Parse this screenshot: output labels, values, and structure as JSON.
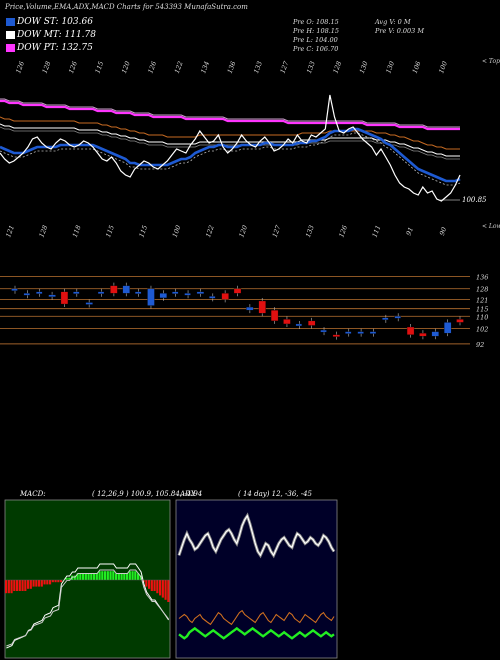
{
  "header": "Price,Volume,EMA,ADX,MACD Charts for 543393 MunafaSutra.com",
  "legend": [
    {
      "label": "DOW ST: 103.66",
      "color": "#1e5ad2"
    },
    {
      "label": "DOW MT: 111.78",
      "color": "#ffffff"
    },
    {
      "label": "DOW PT: 132.75",
      "color": "#ff35ff"
    }
  ],
  "ohlc": {
    "open": "Pre   O: 108.15",
    "high": "Pre   H: 108.15",
    "low": "Pre   L: 104.00",
    "close": "Pre   C: 106.70",
    "avgvol": "Avg V: 0   M",
    "vol": "Pre   V: 0.003 M"
  },
  "price_panel": {
    "top_labels": [
      "126",
      "128",
      "126",
      "115",
      "120",
      "126",
      "122",
      "134",
      "136",
      "133",
      "127",
      "133",
      "128",
      "130",
      "130",
      "106",
      "100"
    ],
    "bottom_labels": [
      "121",
      "128",
      "118",
      "115",
      "115",
      "100",
      "122",
      "120",
      "127",
      "133",
      "126",
      "111",
      "91",
      "90"
    ],
    "side_top": "< Tops",
    "side_bottom": "< Lows",
    "last_price": "100.85"
  },
  "levels": [
    "136",
    "128",
    "121",
    "115",
    "110",
    "102",
    "92"
  ],
  "chart_data": [
    {
      "type": "line",
      "name": "price",
      "x": [
        0,
        1,
        2,
        3,
        4,
        5,
        6,
        7,
        8,
        9,
        10,
        11,
        12,
        13,
        14,
        15,
        16,
        17,
        18,
        19,
        20,
        21,
        22,
        23,
        24,
        25,
        26,
        27,
        28,
        29,
        30,
        31,
        32,
        33,
        34,
        35,
        36,
        37,
        38,
        39,
        40,
        41,
        42,
        43,
        44,
        45,
        46,
        47,
        48,
        49,
        50,
        51,
        52,
        53,
        54,
        55,
        56,
        57,
        58,
        59,
        60,
        61,
        62,
        63,
        64,
        65,
        66,
        67,
        68,
        69,
        70,
        71,
        72,
        73,
        74,
        75,
        76,
        77,
        78,
        79,
        80,
        81,
        82,
        83,
        84,
        85,
        86,
        87,
        88,
        89,
        90,
        91,
        92,
        93,
        94,
        95,
        96,
        97,
        98,
        99
      ],
      "series": [
        {
          "name": "close",
          "values": [
            121,
            118,
            116,
            117,
            119,
            121,
            124,
            128,
            129,
            126,
            124,
            123,
            126,
            128,
            127,
            125,
            124,
            125,
            127,
            126,
            124,
            121,
            118,
            117,
            119,
            116,
            112,
            110,
            109,
            113,
            115,
            117,
            116,
            114,
            113,
            115,
            117,
            120,
            123,
            122,
            121,
            125,
            128,
            132,
            129,
            126,
            127,
            130,
            124,
            121,
            123,
            126,
            130,
            127,
            125,
            124,
            127,
            129,
            126,
            122,
            123,
            125,
            128,
            126,
            130,
            127,
            126,
            130,
            129,
            131,
            133,
            150,
            139,
            132,
            131,
            133,
            134,
            131,
            128,
            126,
            124,
            120,
            123,
            119,
            115,
            110,
            106,
            104,
            103,
            101,
            100,
            104,
            101,
            102,
            98,
            97,
            99,
            101,
            105,
            110
          ]
        },
        {
          "name": "ema_short",
          "values": [
            124,
            123,
            122,
            121,
            121,
            121,
            122,
            123,
            124,
            124,
            124,
            124,
            124,
            125,
            125,
            125,
            125,
            125,
            125,
            125,
            125,
            124,
            123,
            122,
            121,
            120,
            119,
            118,
            116,
            116,
            115,
            115,
            115,
            115,
            115,
            115,
            115,
            116,
            117,
            118,
            118,
            119,
            121,
            122,
            123,
            124,
            124,
            125,
            125,
            124,
            124,
            124,
            125,
            125,
            125,
            125,
            125,
            126,
            126,
            125,
            125,
            125,
            125,
            125,
            126,
            126,
            126,
            127,
            127,
            128,
            129,
            131,
            132,
            132,
            132,
            132,
            133,
            133,
            132,
            131,
            130,
            129,
            128,
            126,
            125,
            123,
            121,
            119,
            117,
            115,
            113,
            112,
            111,
            110,
            109,
            108,
            107,
            107,
            107,
            108
          ]
        },
        {
          "name": "ema_mid",
          "values": [
            134,
            133,
            133,
            132,
            132,
            132,
            132,
            132,
            132,
            132,
            132,
            132,
            132,
            132,
            132,
            132,
            132,
            131,
            131,
            131,
            131,
            131,
            130,
            130,
            129,
            129,
            128,
            128,
            127,
            127,
            126,
            126,
            125,
            125,
            125,
            125,
            124,
            124,
            124,
            124,
            124,
            124,
            124,
            125,
            125,
            125,
            125,
            125,
            125,
            125,
            125,
            125,
            125,
            125,
            125,
            125,
            125,
            125,
            125,
            125,
            125,
            125,
            125,
            125,
            125,
            126,
            126,
            126,
            126,
            126,
            126,
            127,
            127,
            127,
            127,
            127,
            127,
            127,
            127,
            127,
            127,
            126,
            126,
            126,
            125,
            125,
            124,
            124,
            123,
            122,
            122,
            121,
            120,
            120,
            119,
            119,
            118,
            118,
            118,
            118
          ]
        },
        {
          "name": "ema_long",
          "values": [
            147,
            147,
            146,
            146,
            146,
            145,
            145,
            145,
            145,
            145,
            144,
            144,
            144,
            144,
            144,
            143,
            143,
            143,
            143,
            143,
            143,
            142,
            142,
            142,
            142,
            141,
            141,
            141,
            141,
            140,
            140,
            140,
            140,
            139,
            139,
            139,
            139,
            139,
            139,
            139,
            138,
            138,
            138,
            138,
            138,
            138,
            138,
            138,
            138,
            137,
            137,
            137,
            137,
            137,
            137,
            137,
            137,
            137,
            137,
            137,
            137,
            137,
            136,
            136,
            136,
            136,
            136,
            136,
            136,
            136,
            136,
            136,
            136,
            136,
            136,
            136,
            136,
            136,
            136,
            135,
            135,
            135,
            135,
            135,
            135,
            135,
            134,
            134,
            134,
            134,
            134,
            134,
            133,
            133,
            133,
            133,
            133,
            133,
            133,
            133
          ]
        }
      ],
      "ylim": [
        90,
        160
      ]
    },
    {
      "type": "bar",
      "name": "candles",
      "values": [
        {
          "o": 128,
          "c": 128
        },
        {
          "o": 125,
          "c": 125
        },
        {
          "o": 126,
          "c": 126
        },
        {
          "o": 123,
          "c": 124
        },
        {
          "o": 126,
          "c": 118
        },
        {
          "o": 126,
          "c": 126
        },
        {
          "o": 118,
          "c": 119
        },
        {
          "o": 126,
          "c": 126
        },
        {
          "o": 130,
          "c": 125
        },
        {
          "o": 125,
          "c": 130
        },
        {
          "o": 126,
          "c": 126
        },
        {
          "o": 117,
          "c": 128
        },
        {
          "o": 122,
          "c": 125
        },
        {
          "o": 126,
          "c": 126
        },
        {
          "o": 125,
          "c": 125
        },
        {
          "o": 125,
          "c": 126
        },
        {
          "o": 123,
          "c": 123
        },
        {
          "o": 125,
          "c": 121
        },
        {
          "o": 128,
          "c": 125
        },
        {
          "o": 114,
          "c": 116
        },
        {
          "o": 120,
          "c": 112
        },
        {
          "o": 114,
          "c": 107
        },
        {
          "o": 108,
          "c": 105
        },
        {
          "o": 105,
          "c": 105
        },
        {
          "o": 107,
          "c": 104
        },
        {
          "o": 101,
          "c": 101
        },
        {
          "o": 98,
          "c": 97
        },
        {
          "o": 100,
          "c": 100
        },
        {
          "o": 100,
          "c": 100
        },
        {
          "o": 100,
          "c": 100
        },
        {
          "o": 109,
          "c": 109
        },
        {
          "o": 110,
          "c": 110
        },
        {
          "o": 103,
          "c": 98
        },
        {
          "o": 99,
          "c": 97
        },
        {
          "o": 97,
          "c": 100
        },
        {
          "o": 99,
          "c": 106
        },
        {
          "o": 108,
          "c": 106
        }
      ],
      "ylim": [
        88,
        150
      ]
    },
    {
      "type": "bar",
      "name": "MACD",
      "title": "MACD:",
      "params": "( 12,26,9 ) 100.9, 105.84, -4.94",
      "values": [
        -6,
        -6,
        -6,
        -5,
        -5,
        -5,
        -5,
        -5,
        -4,
        -4,
        -3,
        -3,
        -3,
        -3,
        -2,
        -2,
        -2,
        -1,
        -1,
        -1,
        -1,
        0,
        1,
        1,
        2,
        2,
        3,
        3,
        3,
        3,
        3,
        3,
        3,
        3,
        4,
        4,
        4,
        4,
        4,
        4,
        3,
        3,
        3,
        3,
        3,
        4,
        4,
        4,
        3,
        2,
        -1,
        -3,
        -4,
        -5,
        -5,
        -6,
        -7,
        -8,
        -9,
        -10
      ]
    },
    {
      "type": "line",
      "name": "ADX",
      "title": "ADX",
      "params": "( 14 day) 12, -36, -45",
      "series": [
        {
          "name": "+DI",
          "values": [
            12,
            11,
            10,
            11,
            13,
            14,
            15,
            14,
            13,
            12,
            11,
            12,
            13,
            14,
            13,
            12,
            11,
            10,
            11,
            12,
            13,
            14,
            15,
            14,
            13,
            12,
            13,
            14,
            15,
            14,
            13,
            12,
            11,
            12,
            13,
            14,
            13,
            12,
            11,
            12,
            13,
            12,
            11,
            10,
            11,
            12,
            13,
            12,
            11,
            12,
            13,
            14,
            13,
            12,
            11,
            12,
            13,
            12,
            11,
            12
          ]
        },
        {
          "name": "-DI",
          "values": [
            20,
            21,
            22,
            21,
            19,
            18,
            20,
            21,
            22,
            20,
            19,
            18,
            17,
            19,
            21,
            23,
            22,
            20,
            19,
            18,
            17,
            19,
            21,
            23,
            24,
            22,
            21,
            20,
            19,
            18,
            20,
            22,
            23,
            21,
            19,
            18,
            20,
            22,
            21,
            20,
            19,
            21,
            23,
            22,
            20,
            19,
            18,
            20,
            22,
            21,
            20,
            19,
            18,
            20,
            22,
            23,
            21,
            20,
            19,
            21
          ]
        },
        {
          "name": "ADX",
          "values": [
            52,
            56,
            60,
            63,
            60,
            58,
            55,
            56,
            58,
            60,
            62,
            63,
            60,
            56,
            54,
            57,
            60,
            62,
            64,
            65,
            63,
            60,
            58,
            62,
            67,
            70,
            72,
            68,
            63,
            58,
            54,
            52,
            55,
            58,
            57,
            54,
            52,
            55,
            58,
            60,
            61,
            59,
            57,
            56,
            60,
            63,
            62,
            60,
            58,
            59,
            61,
            60,
            58,
            57,
            59,
            62,
            61,
            59,
            56,
            54
          ]
        }
      ]
    }
  ]
}
